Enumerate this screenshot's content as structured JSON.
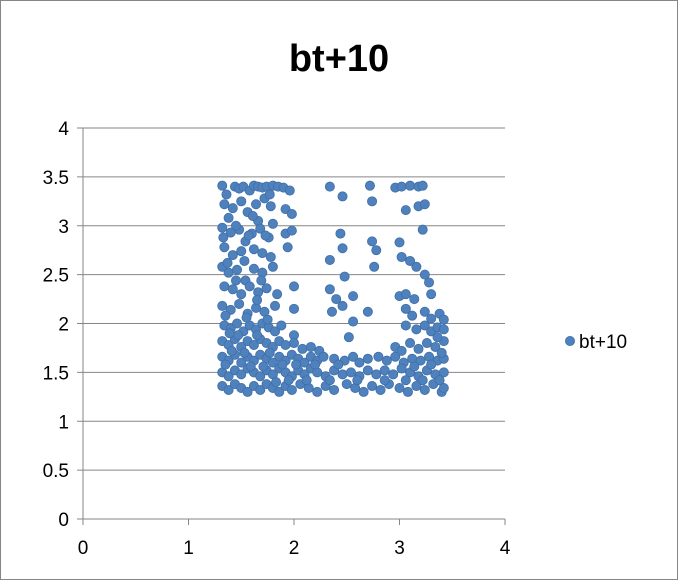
{
  "chart_data": {
    "type": "scatter",
    "title": "bt+10",
    "xlabel": "",
    "ylabel": "",
    "xlim": [
      0,
      4
    ],
    "ylim": [
      0,
      4
    ],
    "x_ticks": [
      "0",
      "1",
      "2",
      "3",
      "4"
    ],
    "y_ticks": [
      "0",
      "0.5",
      "1",
      "1.5",
      "2",
      "2.5",
      "3",
      "3.5",
      "4"
    ],
    "grid": "horizontal",
    "legend": "right",
    "series": [
      {
        "name": "bt+10",
        "color": "#4F81BD",
        "points": [
          [
            1.32,
            3.41
          ],
          [
            1.36,
            3.32
          ],
          [
            1.44,
            3.4
          ],
          [
            1.48,
            3.38
          ],
          [
            1.52,
            3.4
          ],
          [
            1.58,
            3.36
          ],
          [
            1.62,
            3.41
          ],
          [
            1.66,
            3.4
          ],
          [
            1.7,
            3.39
          ],
          [
            1.74,
            3.4
          ],
          [
            1.8,
            3.41
          ],
          [
            1.85,
            3.4
          ],
          [
            1.9,
            3.39
          ],
          [
            1.96,
            3.36
          ],
          [
            2.34,
            3.4
          ],
          [
            2.72,
            3.41
          ],
          [
            2.96,
            3.39
          ],
          [
            3.02,
            3.4
          ],
          [
            3.1,
            3.41
          ],
          [
            3.18,
            3.4
          ],
          [
            3.22,
            3.41
          ],
          [
            1.34,
            3.22
          ],
          [
            1.42,
            3.18
          ],
          [
            1.5,
            3.25
          ],
          [
            1.56,
            3.14
          ],
          [
            1.64,
            3.22
          ],
          [
            1.72,
            3.28
          ],
          [
            1.78,
            3.2
          ],
          [
            1.92,
            3.17
          ],
          [
            1.98,
            3.12
          ],
          [
            2.46,
            3.3
          ],
          [
            2.74,
            3.25
          ],
          [
            3.06,
            3.16
          ],
          [
            3.18,
            3.2
          ],
          [
            3.24,
            3.22
          ],
          [
            1.38,
            3.08
          ],
          [
            1.66,
            3.05
          ],
          [
            1.8,
            3.02
          ],
          [
            1.32,
            2.98
          ],
          [
            1.4,
            2.93
          ],
          [
            1.48,
            2.96
          ],
          [
            1.54,
            2.84
          ],
          [
            1.6,
            2.92
          ],
          [
            1.68,
            2.97
          ],
          [
            1.76,
            2.88
          ],
          [
            1.92,
            2.92
          ],
          [
            1.98,
            2.95
          ],
          [
            2.44,
            2.92
          ],
          [
            2.74,
            2.84
          ],
          [
            3.0,
            2.83
          ],
          [
            3.22,
            2.96
          ],
          [
            1.34,
            2.78
          ],
          [
            1.42,
            2.7
          ],
          [
            1.5,
            2.74
          ],
          [
            1.62,
            2.76
          ],
          [
            1.7,
            2.72
          ],
          [
            1.78,
            2.68
          ],
          [
            1.94,
            2.78
          ],
          [
            2.46,
            2.77
          ],
          [
            2.78,
            2.75
          ],
          [
            3.02,
            2.68
          ],
          [
            3.1,
            2.64
          ],
          [
            3.16,
            2.58
          ],
          [
            1.32,
            2.58
          ],
          [
            1.38,
            2.52
          ],
          [
            1.46,
            2.55
          ],
          [
            1.54,
            2.44
          ],
          [
            1.62,
            2.56
          ],
          [
            1.7,
            2.52
          ],
          [
            1.8,
            2.58
          ],
          [
            2.34,
            2.65
          ],
          [
            2.48,
            2.48
          ],
          [
            2.76,
            2.58
          ],
          [
            3.24,
            2.5
          ],
          [
            3.28,
            2.42
          ],
          [
            1.34,
            2.38
          ],
          [
            1.42,
            2.35
          ],
          [
            1.5,
            2.3
          ],
          [
            1.58,
            2.38
          ],
          [
            1.66,
            2.32
          ],
          [
            1.74,
            2.36
          ],
          [
            1.84,
            2.3
          ],
          [
            2.0,
            2.38
          ],
          [
            2.34,
            2.35
          ],
          [
            2.4,
            2.25
          ],
          [
            2.56,
            2.28
          ],
          [
            3.0,
            2.28
          ],
          [
            3.06,
            2.3
          ],
          [
            3.14,
            2.25
          ],
          [
            3.3,
            2.3
          ],
          [
            1.32,
            2.18
          ],
          [
            1.4,
            2.14
          ],
          [
            1.48,
            2.2
          ],
          [
            1.56,
            2.1
          ],
          [
            1.64,
            2.16
          ],
          [
            1.72,
            2.12
          ],
          [
            1.82,
            2.18
          ],
          [
            2.0,
            2.15
          ],
          [
            2.36,
            2.12
          ],
          [
            2.46,
            2.18
          ],
          [
            2.7,
            2.12
          ],
          [
            3.06,
            2.15
          ],
          [
            3.12,
            2.08
          ],
          [
            3.24,
            2.12
          ],
          [
            3.3,
            2.05
          ],
          [
            3.38,
            2.1
          ],
          [
            3.42,
            2.04
          ],
          [
            1.34,
            1.98
          ],
          [
            1.4,
            1.95
          ],
          [
            1.46,
            2.0
          ],
          [
            1.52,
            1.92
          ],
          [
            1.58,
            1.98
          ],
          [
            1.64,
            1.94
          ],
          [
            1.7,
            2.0
          ],
          [
            1.76,
            1.96
          ],
          [
            1.82,
            1.92
          ],
          [
            1.88,
            1.98
          ],
          [
            2.0,
            1.88
          ],
          [
            2.56,
            2.02
          ],
          [
            2.52,
            1.86
          ],
          [
            3.06,
            1.98
          ],
          [
            3.16,
            1.94
          ],
          [
            3.24,
            1.98
          ],
          [
            3.3,
            1.92
          ],
          [
            3.36,
            1.96
          ],
          [
            3.42,
            1.94
          ],
          [
            1.32,
            1.82
          ],
          [
            1.38,
            1.78
          ],
          [
            1.44,
            1.84
          ],
          [
            1.5,
            1.76
          ],
          [
            1.56,
            1.82
          ],
          [
            1.62,
            1.78
          ],
          [
            1.68,
            1.84
          ],
          [
            1.74,
            1.8
          ],
          [
            1.8,
            1.76
          ],
          [
            1.86,
            1.82
          ],
          [
            1.92,
            1.78
          ],
          [
            2.0,
            1.8
          ],
          [
            2.08,
            1.74
          ],
          [
            2.16,
            1.76
          ],
          [
            2.24,
            1.72
          ],
          [
            2.96,
            1.76
          ],
          [
            3.02,
            1.72
          ],
          [
            3.1,
            1.8
          ],
          [
            3.18,
            1.74
          ],
          [
            3.26,
            1.8
          ],
          [
            3.34,
            1.76
          ],
          [
            3.42,
            1.82
          ],
          [
            1.32,
            1.66
          ],
          [
            1.38,
            1.62
          ],
          [
            1.44,
            1.68
          ],
          [
            1.5,
            1.6
          ],
          [
            1.56,
            1.66
          ],
          [
            1.62,
            1.62
          ],
          [
            1.68,
            1.68
          ],
          [
            1.74,
            1.64
          ],
          [
            1.8,
            1.6
          ],
          [
            1.86,
            1.66
          ],
          [
            1.92,
            1.62
          ],
          [
            1.98,
            1.68
          ],
          [
            2.04,
            1.64
          ],
          [
            2.1,
            1.6
          ],
          [
            2.16,
            1.66
          ],
          [
            2.22,
            1.62
          ],
          [
            2.28,
            1.66
          ],
          [
            2.38,
            1.64
          ],
          [
            2.48,
            1.62
          ],
          [
            2.56,
            1.66
          ],
          [
            2.62,
            1.6
          ],
          [
            2.7,
            1.64
          ],
          [
            2.8,
            1.66
          ],
          [
            2.88,
            1.62
          ],
          [
            2.96,
            1.66
          ],
          [
            3.04,
            1.6
          ],
          [
            3.12,
            1.64
          ],
          [
            3.2,
            1.62
          ],
          [
            3.28,
            1.66
          ],
          [
            3.36,
            1.62
          ],
          [
            3.42,
            1.64
          ],
          [
            1.32,
            1.5
          ],
          [
            1.38,
            1.46
          ],
          [
            1.44,
            1.52
          ],
          [
            1.5,
            1.48
          ],
          [
            1.56,
            1.54
          ],
          [
            1.62,
            1.5
          ],
          [
            1.68,
            1.46
          ],
          [
            1.74,
            1.52
          ],
          [
            1.8,
            1.48
          ],
          [
            1.86,
            1.54
          ],
          [
            1.92,
            1.5
          ],
          [
            1.98,
            1.46
          ],
          [
            2.04,
            1.52
          ],
          [
            2.1,
            1.48
          ],
          [
            2.16,
            1.54
          ],
          [
            2.22,
            1.5
          ],
          [
            2.3,
            1.46
          ],
          [
            2.38,
            1.52
          ],
          [
            2.46,
            1.48
          ],
          [
            2.54,
            1.5
          ],
          [
            2.62,
            1.46
          ],
          [
            2.7,
            1.52
          ],
          [
            2.78,
            1.48
          ],
          [
            2.86,
            1.52
          ],
          [
            2.94,
            1.48
          ],
          [
            3.02,
            1.54
          ],
          [
            3.1,
            1.5
          ],
          [
            3.18,
            1.46
          ],
          [
            3.26,
            1.52
          ],
          [
            3.34,
            1.48
          ],
          [
            3.42,
            1.5
          ],
          [
            1.32,
            1.36
          ],
          [
            1.38,
            1.32
          ],
          [
            1.44,
            1.38
          ],
          [
            1.5,
            1.34
          ],
          [
            1.56,
            1.3
          ],
          [
            1.62,
            1.36
          ],
          [
            1.68,
            1.32
          ],
          [
            1.74,
            1.38
          ],
          [
            1.8,
            1.34
          ],
          [
            1.86,
            1.3
          ],
          [
            1.92,
            1.36
          ],
          [
            1.98,
            1.32
          ],
          [
            2.06,
            1.38
          ],
          [
            2.14,
            1.34
          ],
          [
            2.22,
            1.3
          ],
          [
            2.3,
            1.36
          ],
          [
            2.38,
            1.32
          ],
          [
            2.5,
            1.38
          ],
          [
            2.58,
            1.34
          ],
          [
            2.66,
            1.3
          ],
          [
            2.74,
            1.36
          ],
          [
            2.82,
            1.32
          ],
          [
            2.9,
            1.38
          ],
          [
            3.0,
            1.34
          ],
          [
            3.08,
            1.3
          ],
          [
            3.16,
            1.36
          ],
          [
            3.24,
            1.32
          ],
          [
            3.32,
            1.38
          ],
          [
            3.4,
            1.3
          ],
          [
            3.42,
            1.34
          ],
          [
            1.35,
            1.58
          ],
          [
            1.41,
            1.72
          ],
          [
            1.47,
            1.88
          ],
          [
            1.53,
            1.7
          ],
          [
            1.59,
            1.56
          ],
          [
            1.65,
            1.88
          ],
          [
            1.71,
            1.56
          ],
          [
            1.77,
            1.7
          ],
          [
            1.83,
            1.4
          ],
          [
            1.89,
            1.58
          ],
          [
            1.95,
            1.42
          ],
          [
            2.02,
            1.58
          ],
          [
            2.12,
            1.42
          ],
          [
            2.2,
            1.58
          ],
          [
            2.34,
            1.42
          ],
          [
            2.42,
            1.58
          ],
          [
            2.6,
            1.42
          ],
          [
            2.86,
            1.42
          ],
          [
            3.06,
            1.42
          ],
          [
            3.14,
            1.56
          ],
          [
            3.22,
            1.42
          ],
          [
            3.3,
            1.58
          ],
          [
            3.38,
            1.42
          ],
          [
            3.36,
            1.86
          ],
          [
            3.4,
            1.7
          ],
          [
            1.33,
            2.88
          ],
          [
            1.37,
            2.62
          ],
          [
            1.45,
            3.0
          ],
          [
            1.53,
            2.64
          ],
          [
            1.61,
            3.1
          ],
          [
            1.69,
            2.44
          ],
          [
            1.77,
            3.32
          ],
          [
            1.35,
            2.08
          ],
          [
            1.45,
            2.44
          ],
          [
            1.57,
            2.9
          ],
          [
            1.65,
            2.24
          ],
          [
            1.73,
            2.9
          ],
          [
            1.75,
            2.04
          ],
          [
            1.39,
            1.9
          ],
          [
            1.55,
            2.06
          ]
        ]
      }
    ]
  }
}
